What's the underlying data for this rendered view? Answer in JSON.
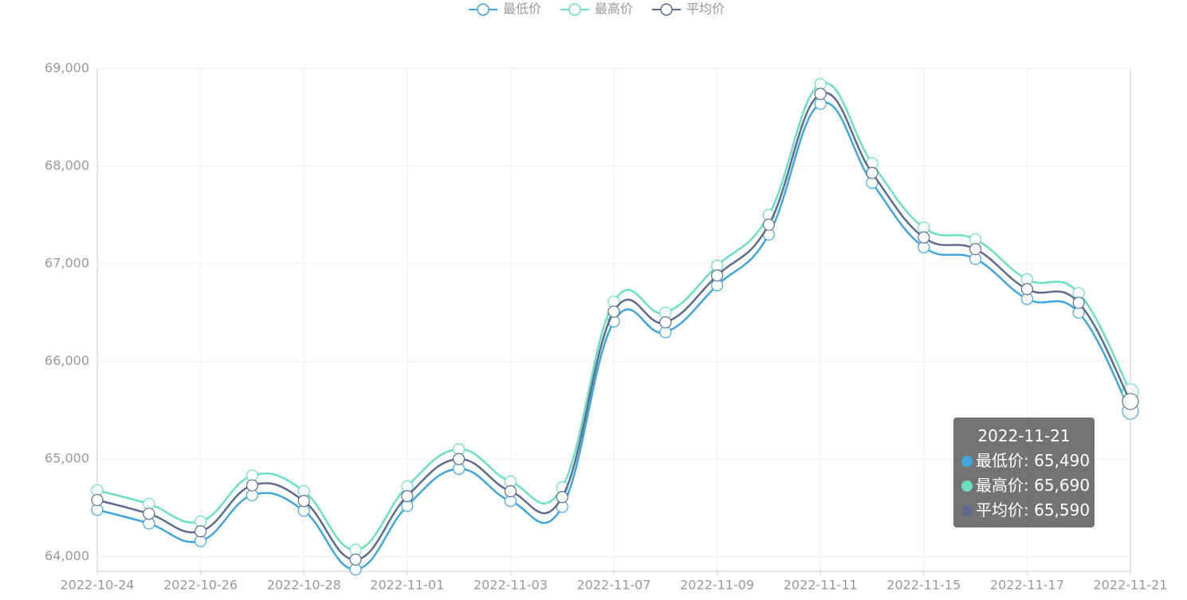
{
  "chart_data": {
    "type": "line",
    "categories": [
      "2022-10-24",
      null,
      "2022-10-26",
      null,
      "2022-10-28",
      null,
      "2022-11-01",
      null,
      "2022-11-03",
      null,
      "2022-11-07",
      null,
      "2022-11-09",
      null,
      "2022-11-11",
      null,
      "2022-11-15",
      null,
      "2022-11-17",
      null,
      "2022-11-21"
    ],
    "series": [
      {
        "name": "最低价",
        "color": "#3fa7dc",
        "values": [
          64480,
          64340,
          64160,
          64630,
          64470,
          63870,
          64520,
          64900,
          64570,
          64510,
          66410,
          66300,
          66780,
          67300,
          68640,
          67830,
          67170,
          67050,
          66640,
          66500,
          65490
        ]
      },
      {
        "name": "最高价",
        "color": "#6ae0bf",
        "values": [
          64680,
          64540,
          64360,
          64830,
          64670,
          64070,
          64720,
          65100,
          64770,
          64710,
          66610,
          66500,
          66980,
          67500,
          68840,
          68030,
          67370,
          67250,
          66840,
          66700,
          65690
        ]
      },
      {
        "name": "平均价",
        "color": "#5d6b8f",
        "values": [
          64580,
          64440,
          64260,
          64730,
          64570,
          63970,
          64620,
          65000,
          64670,
          64610,
          66510,
          66400,
          66880,
          67400,
          68740,
          67930,
          67270,
          67150,
          66740,
          66600,
          65590
        ]
      }
    ],
    "ylim": [
      63850,
      69000
    ],
    "yticks": [
      {
        "value": 64000,
        "label": "64,000"
      },
      {
        "value": 65000,
        "label": "65,000"
      },
      {
        "value": 66000,
        "label": "66,000"
      },
      {
        "value": 67000,
        "label": "67,000"
      },
      {
        "value": 68000,
        "label": "68,000"
      },
      {
        "value": 69000,
        "label": "69,000"
      }
    ],
    "grid": true,
    "legend": "top",
    "tooltip": {
      "title": "2022-11-21",
      "items": [
        "最低价: 65,490",
        "最高价: 65,690",
        "平均价: 65,590"
      ]
    }
  }
}
